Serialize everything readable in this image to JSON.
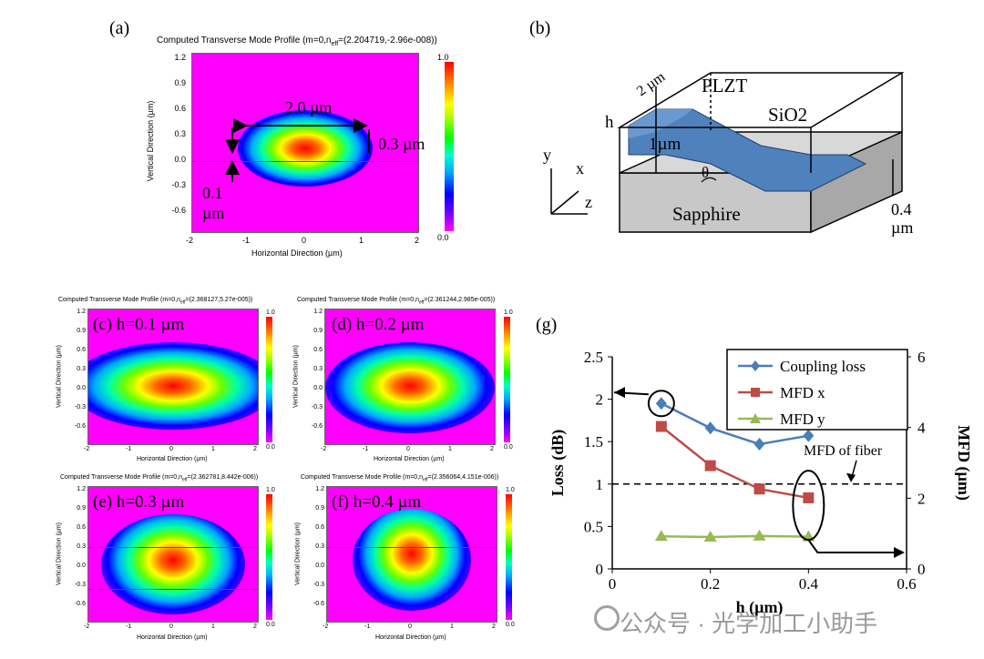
{
  "panel_a": {
    "label": "(a)",
    "title": "Computed Transverse Mode Profile (m=0,n",
    "title_sub": "eff",
    "title_rest": "=(2.204719,-2.96e-008))",
    "y_ticks": [
      "1.2",
      "0.9",
      "0.6",
      "0.3",
      "0.0",
      "-0.3",
      "-0.6"
    ],
    "x_ticks": [
      "-2",
      "-1",
      "0",
      "1",
      "2"
    ],
    "cbar_top": "1.0",
    "cbar_bottom": "0.0",
    "xlabel": "Horizontal Direction (µm)",
    "ylabel": "Vertical Direction (µm)",
    "ann_width": "2.0 µm",
    "ann_height": "0.3 µm",
    "ann_slab_a": "0.1",
    "ann_slab_b": "µm"
  },
  "panel_b": {
    "label": "(b)",
    "width": "2 µm",
    "plzt": "PLZT",
    "sio2": "SiO2",
    "h": "h",
    "onemicron": "1µm",
    "theta": "θ",
    "sapphire": "Sapphire",
    "axis_x": "x",
    "axis_y": "y",
    "axis_z": "z",
    "slab_a": "0.4",
    "slab_b": "µm"
  },
  "small_panels": [
    {
      "label": "(c) h=0.1 µm",
      "title": "Computed Transverse Mode Profile (m=0,n",
      "sub": "eff",
      "rest": "=(2.368127,5.27e-005))"
    },
    {
      "label": "(d) h=0.2 µm",
      "title": "Computed Transverse Mode Profile (m=0,n",
      "sub": "eff",
      "rest": "=(2.361244,2.985e-005))"
    },
    {
      "label": "(e) h=0.3 µm",
      "title": "Computed Transverse Mode Profile (m=0,n",
      "sub": "eff",
      "rest": "=(2.362781,8.442e-006))"
    },
    {
      "label": "(f) h=0.4 µm",
      "title": "Computed Transverse Mode Profile (m=0,n",
      "sub": "eff",
      "rest": "=(2.356064,4.151e-006))"
    }
  ],
  "small_common": {
    "y_ticks": [
      "1.2",
      "0.9",
      "0.6",
      "0.3",
      "0.0",
      "-0.3",
      "-0.6"
    ],
    "x_ticks": [
      "-2",
      "-1",
      "0",
      "1",
      "2"
    ],
    "cbar_top": "1.0",
    "cbar_bottom": "0.0",
    "xlabel": "Horizontal Direction (µm)",
    "ylabel": "Vertical Direction (µm)"
  },
  "panel_g": {
    "label": "(g)",
    "annotation": "MFD of fiber"
  },
  "watermark": "公众号 · 光学加工小助手",
  "chart_data": {
    "type": "line",
    "title": "",
    "xlabel": "h (µm)",
    "ylabel": "Loss (dB)",
    "y2label": "MFD (µm)",
    "xlim": [
      0,
      0.6
    ],
    "ylim": [
      0,
      2.5
    ],
    "y2lim": [
      0,
      6
    ],
    "x_ticks": [
      "0",
      "0.2",
      "0.4",
      "0.6"
    ],
    "y_ticks": [
      "0",
      "0.5",
      "1",
      "1.5",
      "2",
      "2.5"
    ],
    "y2_ticks": [
      "0",
      "2",
      "4",
      "6"
    ],
    "reference_line": {
      "name": "MFD of fiber",
      "y": 1.0
    },
    "series": [
      {
        "name": "Coupling loss",
        "axis": "left",
        "color": "#4a7ebb",
        "marker": "diamond",
        "x": [
          0.1,
          0.2,
          0.3,
          0.4
        ],
        "values": [
          1.95,
          1.66,
          1.47,
          1.57
        ]
      },
      {
        "name": "MFD x",
        "axis": "right",
        "color": "#be4b48",
        "marker": "square",
        "x": [
          0.1,
          0.2,
          0.3,
          0.4
        ],
        "values": [
          4.03,
          2.92,
          2.26,
          2.01
        ]
      },
      {
        "name": "MFD y",
        "axis": "right",
        "color": "#98b954",
        "marker": "triangle",
        "x": [
          0.1,
          0.2,
          0.3,
          0.4
        ],
        "values": [
          0.92,
          0.9,
          0.93,
          0.91
        ]
      }
    ]
  }
}
